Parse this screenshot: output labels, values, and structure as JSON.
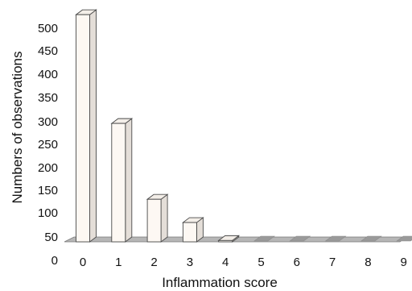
{
  "chart_data": {
    "type": "bar",
    "style": "3d",
    "categories": [
      "0",
      "1",
      "2",
      "3",
      "4",
      "5",
      "6",
      "7",
      "8",
      "9"
    ],
    "values": [
      518,
      270,
      97,
      44,
      3,
      0,
      0,
      0,
      0,
      0
    ],
    "xlabel": "Inflammation score",
    "ylabel": "Numbers of observations",
    "yticks": [
      "0",
      "50",
      "100",
      "150",
      "200",
      "250",
      "300",
      "350",
      "400",
      "450",
      "500"
    ],
    "ylim": [
      0,
      525
    ],
    "grid": false,
    "legend": "none",
    "colors": {
      "bar_face": "#fdf8f3",
      "bar_side": "#e4ded8",
      "bar_top": "#f3eee8",
      "floor": "#b6b6b6",
      "edge": "#4a4a4a"
    }
  }
}
